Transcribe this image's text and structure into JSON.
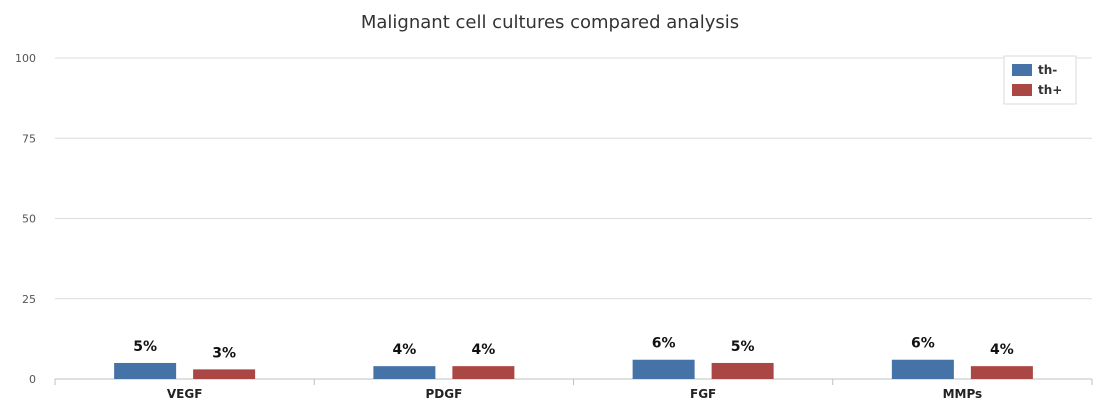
{
  "chart_data": {
    "type": "bar",
    "title": "Malignant cell cultures compared analysis",
    "xlabel": "",
    "ylabel": "",
    "categories": [
      "VEGF",
      "PDGF",
      "FGF",
      "MMPs"
    ],
    "series": [
      {
        "name": "th-",
        "values": [
          5,
          4,
          6,
          6
        ],
        "labels": [
          "5%",
          "4%",
          "6%",
          "6%"
        ],
        "color": "#4572A7"
      },
      {
        "name": "th+",
        "values": [
          3,
          4,
          5,
          4
        ],
        "labels": [
          "3%",
          "4%",
          "5%",
          "4%"
        ],
        "color": "#AA4643"
      }
    ],
    "ylim": [
      0,
      100
    ],
    "yticks": [
      "0",
      "25",
      "50",
      "75",
      "100"
    ],
    "grid": true,
    "legend_position": "top-right"
  }
}
